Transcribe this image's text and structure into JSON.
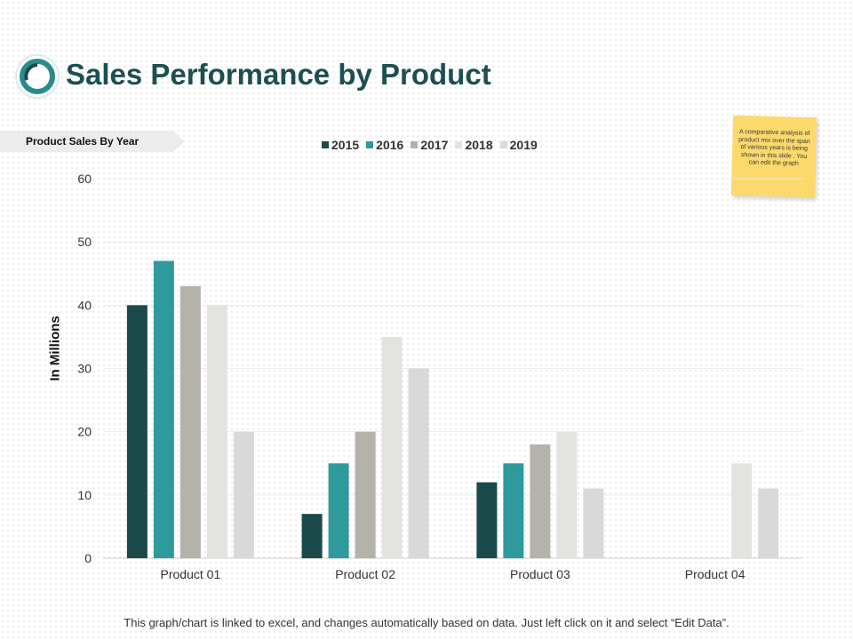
{
  "header": {
    "title": "Sales Performance by Product"
  },
  "banner": {
    "label": "Product Sales By Year"
  },
  "note": {
    "text": "A comparative analysis of product mix over the span of various years is being shown in this slide . You can edit the graph"
  },
  "footer": {
    "text": "This graph/chart is linked to excel, and changes automatically based on data. Just left click on it and select “Edit Data”."
  },
  "colors": {
    "title": "#1d4f52",
    "logo_ring": "#2a8b8e"
  },
  "chart_data": {
    "type": "bar",
    "title": "Product Sales By Year",
    "xlabel": "",
    "ylabel": "In Millions",
    "ylim": [
      0,
      60
    ],
    "yticks": [
      0,
      10,
      20,
      30,
      40,
      50,
      60
    ],
    "categories": [
      "Product 01",
      "Product 02",
      "Product 03",
      "Product 04"
    ],
    "series": [
      {
        "name": "2015",
        "color": "#1a4a4a",
        "values": [
          40,
          7,
          12,
          0
        ]
      },
      {
        "name": "2016",
        "color": "#2e9a9c",
        "values": [
          47,
          15,
          15,
          0
        ]
      },
      {
        "name": "2017",
        "color": "#b4b2aa",
        "values": [
          43,
          20,
          18,
          0
        ]
      },
      {
        "name": "2018",
        "color": "#e3e3e0",
        "values": [
          40,
          35,
          20,
          15
        ]
      },
      {
        "name": "2019",
        "color": "#d9d9d9",
        "values": [
          20,
          30,
          11,
          11
        ]
      }
    ]
  }
}
